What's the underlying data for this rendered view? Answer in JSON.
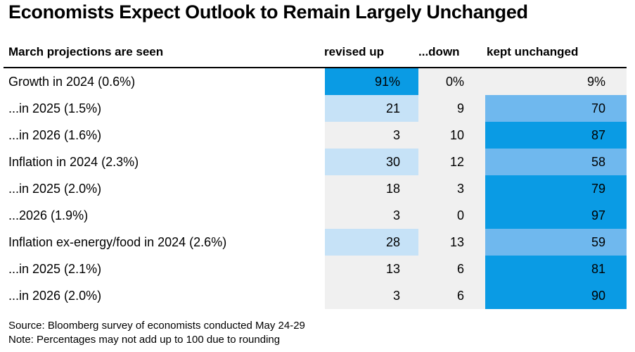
{
  "title": "Economists Expect Outlook to Remain Largely Unchanged",
  "chart_data": {
    "type": "table",
    "columns": [
      "March projections are seen",
      "revised up",
      "...down",
      "kept unchanged"
    ],
    "rows": [
      {
        "label": "Growth in 2024 (0.6%)",
        "up": "91%",
        "down": "0%",
        "unchanged": "9%",
        "up_v": 91,
        "down_v": 0,
        "unch_v": 9
      },
      {
        "label": "...in 2025 (1.5%)",
        "up": "21",
        "down": "9",
        "unchanged": "70",
        "up_v": 21,
        "down_v": 9,
        "unch_v": 70
      },
      {
        "label": "...in 2026 (1.6%)",
        "up": "3",
        "down": "10",
        "unchanged": "87",
        "up_v": 3,
        "down_v": 10,
        "unch_v": 87
      },
      {
        "label": "Inflation in 2024 (2.3%)",
        "up": "30",
        "down": "12",
        "unchanged": "58",
        "up_v": 30,
        "down_v": 12,
        "unch_v": 58
      },
      {
        "label": "...in 2025 (2.0%)",
        "up": "18",
        "down": "3",
        "unchanged": "79",
        "up_v": 18,
        "down_v": 3,
        "unch_v": 79
      },
      {
        "label": "...2026 (1.9%)",
        "up": "3",
        "down": "0",
        "unchanged": "97",
        "up_v": 3,
        "down_v": 0,
        "unch_v": 97
      },
      {
        "label": "Inflation ex-energy/food in 2024 (2.6%)",
        "up": "28",
        "down": "13",
        "unchanged": "59",
        "up_v": 28,
        "down_v": 13,
        "unch_v": 59
      },
      {
        "label": "...in 2025 (2.1%)",
        "up": "13",
        "down": "6",
        "unchanged": "81",
        "up_v": 13,
        "down_v": 6,
        "unch_v": 81
      },
      {
        "label": "...in 2026 (2.0%)",
        "up": "3",
        "down": "6",
        "unchanged": "90",
        "up_v": 3,
        "down_v": 6,
        "unch_v": 90
      }
    ],
    "color_scale": {
      "low": "#f0f0f0",
      "light": "#c6e2f7",
      "mid": "#6fb8ee",
      "high": "#0a9be4"
    }
  },
  "source": "Source: Bloomberg survey of economists conducted May 24-29",
  "note": "Note: Percentages may not add up to 100 due to rounding"
}
